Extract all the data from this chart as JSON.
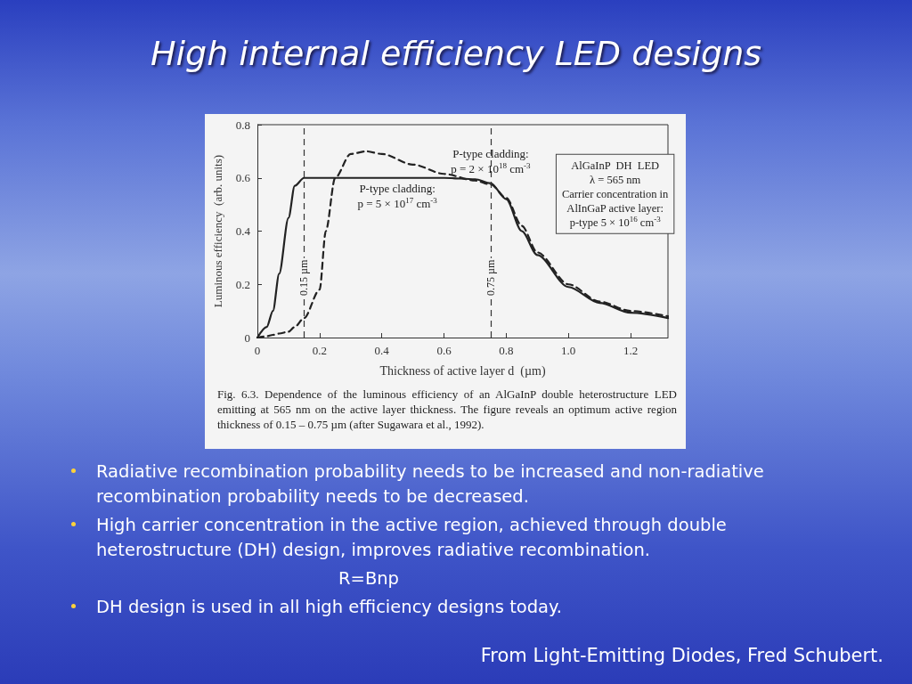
{
  "chart_data": {
    "type": "line",
    "title": "High internal efficiency LED designs",
    "xlabel": "Thickness of active layer d  (µm)",
    "ylabel": "Luminous efficiency  (arb. units)",
    "x": [
      0,
      0.03,
      0.05,
      0.07,
      0.1,
      0.12,
      0.15,
      0.2,
      0.22,
      0.25,
      0.3,
      0.35,
      0.4,
      0.5,
      0.6,
      0.7,
      0.75,
      0.8,
      0.85,
      0.9,
      1.0,
      1.1,
      1.2,
      1.32
    ],
    "series": [
      {
        "name": "P-type cladding: p = 5 × 10$^{17}$ cm$^{-3}$",
        "color": "#222222",
        "line_style": "solid",
        "values": [
          0,
          0.04,
          0.1,
          0.24,
          0.45,
          0.57,
          0.6,
          0.6,
          0.6,
          0.6,
          0.6,
          0.6,
          0.6,
          0.6,
          0.6,
          0.595,
          0.58,
          0.52,
          0.4,
          0.31,
          0.19,
          0.13,
          0.093,
          0.073
        ]
      },
      {
        "name": "P-type cladding: p = 2 × 10$^{18}$ cm$^{-3}$",
        "color": "#222222",
        "line_style": "dashed",
        "values": [
          0,
          0.005,
          0.01,
          0.015,
          0.022,
          0.04,
          0.073,
          0.18,
          0.4,
          0.6,
          0.69,
          0.7,
          0.69,
          0.65,
          0.615,
          0.59,
          0.575,
          0.525,
          0.42,
          0.32,
          0.2,
          0.135,
          0.1,
          0.08
        ]
      }
    ],
    "xlim": [
      0,
      1.32
    ],
    "xticks": [
      0,
      0.2,
      0.4,
      0.6,
      0.8,
      {
        "value": 1,
        "label": "1.0"
      },
      1.2
    ],
    "ylim": [
      0,
      0.8
    ],
    "yticks": [
      0,
      0.2,
      0.4,
      0.6,
      0.8
    ],
    "marker": "none",
    "grid": false,
    "legend": false,
    "ref_lines": [
      {
        "axis": "x",
        "value": 0.15,
        "label": "0.15 µm",
        "line_style": "dashed"
      },
      {
        "axis": "x",
        "value": 0.75,
        "label": "0.75 µm",
        "line_style": "dashed"
      }
    ],
    "annotations": [
      "AlGaInP  DH  LED\nλ = 565 nm\nCarrier concentration in\nAlInGaP active layer:\np-type 5 × 10$^{16}$ cm$^{-3}$",
      "Fig. 6.3. Dependence of the luminous efficiency of an AlGaInP double heterostructure LED emitting at 565 nm on the active layer thickness. The figure reveals an optimum active region thickness of 0.15 – 0.75 µm (after Sugawara et al., 1992).",
      "Radiative recombination probability needs to be increased and non-radiative recombination probability needs to be decreased.",
      "High carrier concentration in the active region, achieved through double heterostructure (DH) design, improves radiative recombination.",
      "R=Bnp",
      "DH design is used in all high efficiency designs today.",
      "From Light-Emitting Diodes, Fred Schubert."
    ]
  }
}
